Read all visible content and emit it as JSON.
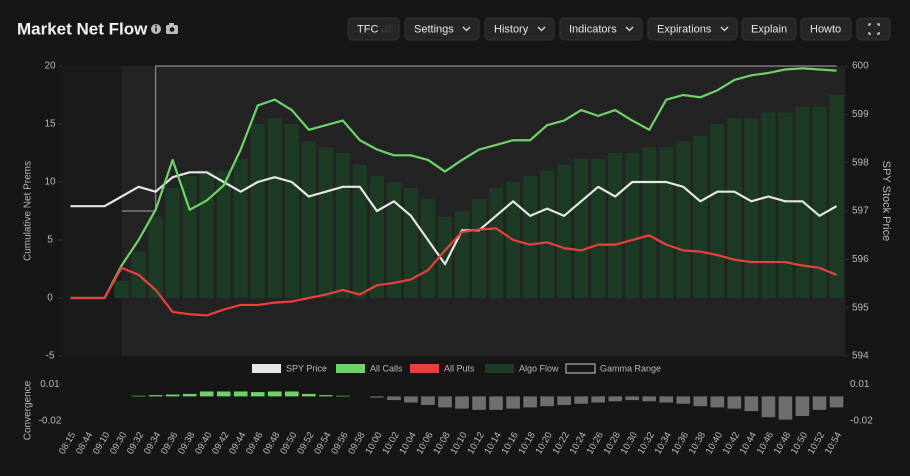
{
  "header": {
    "title": "Market Net Flow",
    "buttons": [
      "TFC",
      "Settings",
      "History",
      "Indicators",
      "Expirations",
      "Explain",
      "Howto"
    ]
  },
  "chart_data": [
    {
      "type": "combo",
      "y_label": "Cumulative Net Prems",
      "y2_label": "SPY Stock Price",
      "categories": [
        "08:15",
        "08:44",
        "09:10",
        "09:30",
        "09:32",
        "09:34",
        "09:36",
        "09:38",
        "09:40",
        "09:42",
        "09:44",
        "09:46",
        "09:48",
        "09:50",
        "09:52",
        "09:54",
        "09:56",
        "09:58",
        "10:00",
        "10:02",
        "10:04",
        "10:06",
        "10:08",
        "10:10",
        "10:12",
        "10:14",
        "10:16",
        "10:18",
        "10:20",
        "10:22",
        "10:24",
        "10:26",
        "10:28",
        "10:30",
        "10:32",
        "10:34",
        "10:36",
        "10:38",
        "10:40",
        "10:42",
        "10:44",
        "10:46",
        "10:48",
        "10:50",
        "10:52",
        "10:54"
      ],
      "ylim": [
        -5,
        20
      ],
      "yticks": [
        -5,
        0,
        5,
        10,
        15,
        20
      ],
      "y2lim": [
        594,
        600
      ],
      "y2ticks": [
        594,
        595,
        596,
        597,
        598,
        599,
        600
      ],
      "series": [
        {
          "name": "SPY Price",
          "type": "line",
          "axis": "y2",
          "color": "#e6e6e6",
          "values": [
            597.1,
            597.1,
            597.1,
            597.3,
            597.5,
            597.4,
            597.7,
            597.8,
            597.8,
            597.6,
            597.4,
            597.6,
            597.7,
            597.6,
            597.3,
            597.4,
            597.5,
            597.5,
            597.0,
            597.2,
            596.9,
            596.4,
            595.9,
            596.6,
            596.6,
            596.9,
            597.2,
            596.9,
            597.05,
            596.9,
            597.2,
            597.5,
            597.3,
            597.6,
            597.6,
            597.6,
            597.5,
            597.2,
            597.4,
            597.4,
            597.2,
            597.3,
            597.2,
            597.2,
            596.9,
            597.1
          ]
        },
        {
          "name": "All Calls",
          "type": "line",
          "color": "#6fd36a",
          "values": [
            0,
            0,
            0,
            2.8,
            5,
            7.6,
            11.9,
            7.6,
            8.4,
            9.7,
            12.8,
            16.6,
            17.1,
            16.2,
            14.5,
            14.9,
            15.3,
            13.6,
            12.8,
            12.3,
            12.3,
            11.9,
            10.9,
            11.9,
            12.8,
            13.2,
            13.6,
            13.6,
            14.9,
            15.3,
            16.2,
            15.7,
            16.2,
            15.3,
            14.5,
            17.1,
            17.5,
            17.3,
            17.9,
            18.8,
            19.2,
            19.4,
            19.7,
            19.8,
            19.7,
            19.6
          ]
        },
        {
          "name": "All Puts",
          "type": "line",
          "color": "#e8403f",
          "values": [
            0,
            0,
            0,
            2.6,
            2.0,
            0.7,
            -1.2,
            -1.4,
            -1.5,
            -1.0,
            -0.6,
            -0.6,
            -0.4,
            -0.3,
            0,
            0.3,
            0.7,
            0.3,
            1.1,
            1.3,
            1.6,
            2.4,
            4.1,
            5.7,
            5.9,
            6.0,
            5.0,
            4.6,
            4.8,
            4.3,
            4.1,
            4.6,
            4.6,
            5.0,
            5.4,
            4.6,
            4.1,
            4.0,
            3.7,
            3.3,
            3.1,
            3.1,
            3.1,
            2.8,
            2.6,
            2.0
          ]
        },
        {
          "name": "Algo Flow",
          "type": "bar",
          "color": "#1d3a25",
          "values": [
            null,
            null,
            null,
            1.5,
            4,
            7,
            9.5,
            10.5,
            11,
            11,
            12,
            15,
            15.5,
            15,
            13.5,
            13,
            12.5,
            11.5,
            10.5,
            10,
            9.5,
            8.5,
            7,
            7.5,
            8.5,
            9.5,
            10,
            10.5,
            11,
            11.5,
            12,
            12,
            12.5,
            12.5,
            13,
            13,
            13.5,
            14,
            15,
            15.5,
            15.5,
            16,
            16,
            16.5,
            16.5,
            17.5
          ]
        },
        {
          "name": "Gamma Range",
          "type": "step",
          "color": "#8a8a8a",
          "values": [
            null,
            null,
            null,
            7.5,
            7.5,
            20,
            20,
            20,
            20,
            20,
            20,
            20,
            20,
            20,
            20,
            20,
            20,
            20,
            20,
            20,
            20,
            20,
            20,
            20,
            20,
            20,
            20,
            20,
            20,
            20,
            20,
            20,
            20,
            20,
            20,
            20,
            20,
            20,
            20,
            20,
            20,
            20,
            20,
            20,
            20,
            20
          ]
        }
      ]
    },
    {
      "type": "bar",
      "y_label": "Convergence",
      "ylim": [
        -0.025,
        0.015
      ],
      "yticks": [
        0.01,
        -0.02
      ],
      "color": "#6fd36a",
      "negative_color": "#6e6e6e",
      "values": [
        0,
        0,
        0,
        0,
        0.0005,
        0.001,
        0.0015,
        0.002,
        0.004,
        0.004,
        0.004,
        0.0035,
        0.004,
        0.004,
        0.002,
        0.001,
        0.0005,
        0,
        -0.001,
        -0.003,
        -0.005,
        -0.007,
        -0.009,
        -0.01,
        -0.011,
        -0.011,
        -0.01,
        -0.009,
        -0.008,
        -0.007,
        -0.006,
        -0.005,
        -0.004,
        -0.003,
        -0.004,
        -0.005,
        -0.006,
        -0.008,
        -0.009,
        -0.01,
        -0.012,
        -0.017,
        -0.019,
        -0.016,
        -0.011,
        -0.009
      ]
    }
  ]
}
